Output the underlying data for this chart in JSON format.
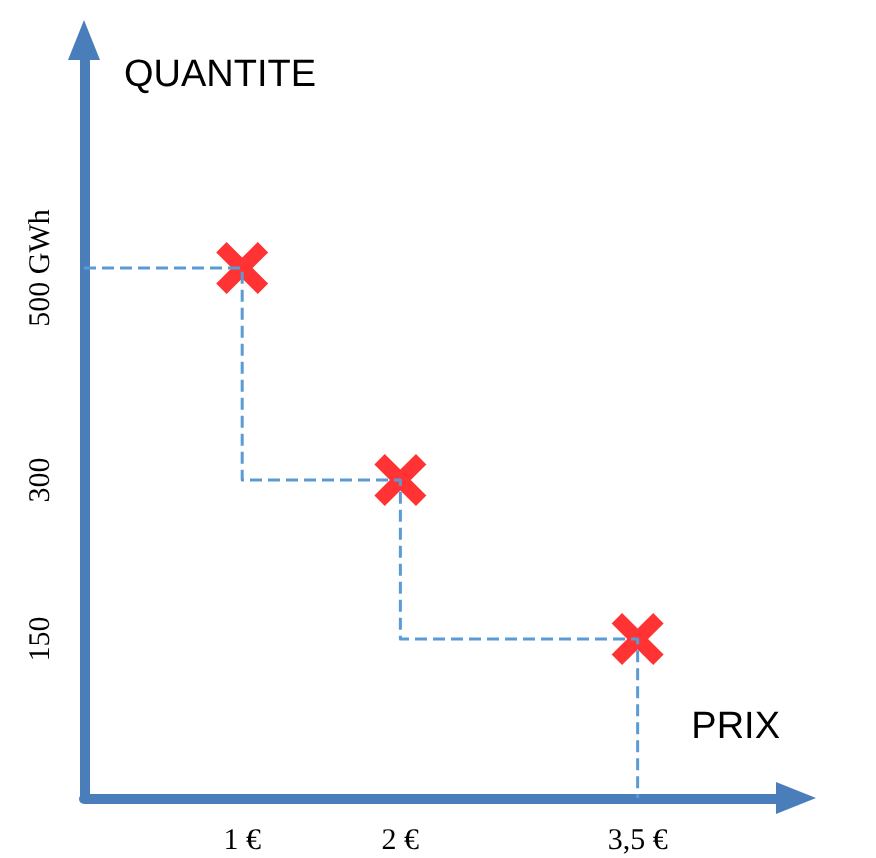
{
  "chart_data": {
    "type": "scatter",
    "xlabel": "PRIX",
    "ylabel": "QUANTITE",
    "xlim": [
      0,
      4.4
    ],
    "ylim": [
      0,
      700
    ],
    "xticks": [
      {
        "value": 1,
        "label": "1 €"
      },
      {
        "value": 2,
        "label": "2 €"
      },
      {
        "value": 3.5,
        "label": "3,5 €"
      }
    ],
    "yticks": [
      {
        "value": 150,
        "label": "150"
      },
      {
        "value": 300,
        "label": "300"
      },
      {
        "value": 500,
        "label": "500 GWh"
      }
    ],
    "grid": false,
    "series": [
      {
        "type": "step",
        "color": "#5b9bd5",
        "x": [
          0,
          1,
          2,
          3.5
        ],
        "values": [
          500,
          300,
          150,
          0
        ],
        "marker": "none",
        "line_style": "dashed"
      },
      {
        "color": "#ff0000",
        "x": [
          1,
          2,
          3.5
        ],
        "values": [
          500,
          300,
          150
        ],
        "marker": "cross"
      }
    ]
  }
}
